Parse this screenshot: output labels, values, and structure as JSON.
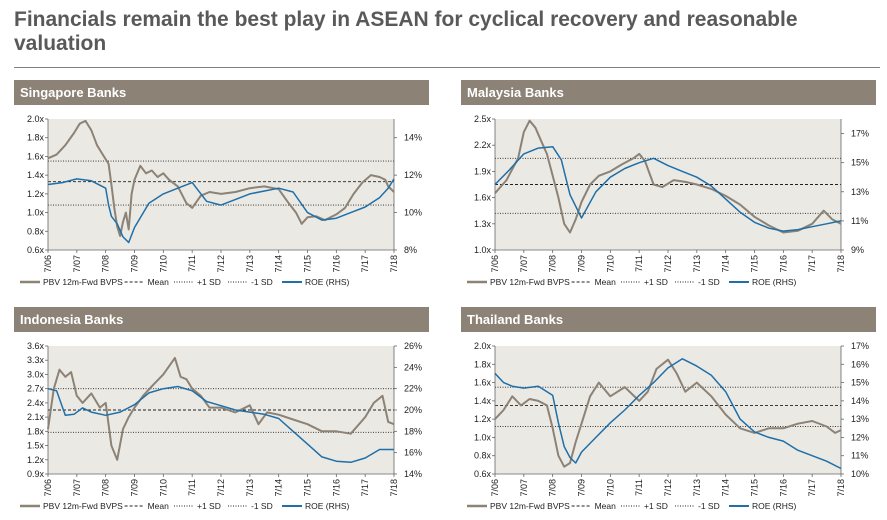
{
  "page": {
    "title": "Financials remain the best play in ASEAN for cyclical recovery and reasonable valuation"
  },
  "legend": {
    "pbv": "PBV 12m-Fwd BVPS",
    "mean": "Mean",
    "plus_sd": "+1 SD",
    "minus_sd": "-1 SD",
    "roe": "ROE (RHS)"
  },
  "colors": {
    "pbv": "#8c8276",
    "roe": "#1f6fa8",
    "header": "#8c8276",
    "plot_bg": "#ebe9e4"
  },
  "chart_data": [
    {
      "type": "line",
      "title": "Singapore Banks",
      "x_ticks": [
        "7/06",
        "7/07",
        "7/08",
        "7/09",
        "7/10",
        "7/11",
        "7/12",
        "7/13",
        "7/14",
        "7/15",
        "7/16",
        "7/17",
        "7/18"
      ],
      "y_left_ticks": [
        "0.6x",
        "0.8x",
        "1.0x",
        "1.2x",
        "1.4x",
        "1.6x",
        "1.8x",
        "2.0x"
      ],
      "y_left_lim": [
        0.6,
        2.0
      ],
      "y_right_ticks": [
        "8%",
        "10%",
        "12%",
        "14%"
      ],
      "y_right_lim": [
        8,
        15
      ],
      "mean": 1.33,
      "plus_sd": 1.55,
      "minus_sd": 1.08,
      "series": [
        {
          "name": "PBV 12m-Fwd BVPS",
          "axis": "left",
          "x": [
            0,
            0.3,
            0.6,
            0.9,
            1.1,
            1.3,
            1.5,
            1.7,
            1.9,
            2.1,
            2.2,
            2.3,
            2.4,
            2.5,
            2.6,
            2.7,
            2.8,
            2.9,
            3.0,
            3.2,
            3.4,
            3.6,
            3.8,
            4.0,
            4.2,
            4.5,
            4.8,
            5.0,
            5.3,
            5.6,
            6.0,
            6.5,
            7.0,
            7.5,
            8.0,
            8.3,
            8.6,
            8.8,
            9.0,
            9.3,
            9.6,
            10.0,
            10.3,
            10.6,
            10.9,
            11.2,
            11.5,
            11.7,
            11.8,
            12.0
          ],
          "y": [
            1.58,
            1.62,
            1.72,
            1.85,
            1.95,
            1.98,
            1.88,
            1.72,
            1.62,
            1.52,
            1.3,
            1.05,
            0.85,
            0.75,
            0.9,
            1.0,
            0.82,
            1.2,
            1.35,
            1.5,
            1.42,
            1.45,
            1.38,
            1.42,
            1.35,
            1.28,
            1.1,
            1.05,
            1.18,
            1.22,
            1.2,
            1.22,
            1.26,
            1.28,
            1.25,
            1.12,
            1.0,
            0.88,
            0.95,
            0.96,
            0.92,
            0.98,
            1.05,
            1.2,
            1.32,
            1.4,
            1.38,
            1.35,
            1.28,
            1.22
          ]
        },
        {
          "name": "ROE (RHS)",
          "axis": "right",
          "x": [
            0,
            0.5,
            1.0,
            1.5,
            2.0,
            2.1,
            2.2,
            2.4,
            2.6,
            2.8,
            3.0,
            3.5,
            4.0,
            4.5,
            5.0,
            5.5,
            6.0,
            7.0,
            8.0,
            8.5,
            9.0,
            9.5,
            10.0,
            10.5,
            11.0,
            11.5,
            11.8,
            12.0
          ],
          "y": [
            11.5,
            11.6,
            11.8,
            11.7,
            11.3,
            10.4,
            9.8,
            9.4,
            8.7,
            8.4,
            9.2,
            10.5,
            11.0,
            11.3,
            11.6,
            10.6,
            10.4,
            11.0,
            11.3,
            11.1,
            10.0,
            9.6,
            9.7,
            10.0,
            10.3,
            10.8,
            11.3,
            11.8
          ]
        }
      ]
    },
    {
      "type": "line",
      "title": "Malaysia Banks",
      "x_ticks": [
        "7/06",
        "7/07",
        "7/08",
        "7/09",
        "7/10",
        "7/11",
        "7/12",
        "7/13",
        "7/14",
        "7/15",
        "7/16",
        "7/17",
        "7/18"
      ],
      "y_left_ticks": [
        "1.0x",
        "1.3x",
        "1.6x",
        "1.9x",
        "2.2x",
        "2.5x"
      ],
      "y_left_lim": [
        1.0,
        2.5
      ],
      "y_right_ticks": [
        "9%",
        "11%",
        "13%",
        "15%",
        "17%"
      ],
      "y_right_lim": [
        9,
        18
      ],
      "mean": 1.75,
      "plus_sd": 2.05,
      "minus_sd": 1.42,
      "series": [
        {
          "name": "PBV 12m-Fwd BVPS",
          "axis": "left",
          "x": [
            0,
            0.4,
            0.8,
            1.0,
            1.2,
            1.4,
            1.6,
            1.8,
            2.0,
            2.2,
            2.4,
            2.6,
            2.8,
            3.0,
            3.3,
            3.6,
            4.0,
            4.4,
            4.8,
            5.0,
            5.2,
            5.5,
            5.8,
            6.2,
            6.6,
            7.0,
            7.5,
            8.0,
            8.5,
            9.0,
            9.5,
            10.0,
            10.5,
            11.0,
            11.4,
            11.7,
            12.0
          ],
          "y": [
            1.65,
            1.8,
            2.05,
            2.35,
            2.48,
            2.4,
            2.25,
            2.1,
            1.85,
            1.6,
            1.3,
            1.2,
            1.35,
            1.55,
            1.75,
            1.85,
            1.9,
            1.98,
            2.05,
            2.1,
            2.02,
            1.75,
            1.72,
            1.8,
            1.78,
            1.75,
            1.7,
            1.62,
            1.52,
            1.38,
            1.28,
            1.2,
            1.22,
            1.3,
            1.45,
            1.35,
            1.3
          ]
        },
        {
          "name": "ROE (RHS)",
          "axis": "right",
          "x": [
            0,
            0.5,
            1.0,
            1.5,
            2.0,
            2.3,
            2.6,
            3.0,
            3.5,
            4.0,
            4.5,
            5.0,
            5.5,
            6.0,
            6.5,
            7.0,
            7.5,
            8.0,
            8.5,
            9.0,
            9.5,
            10.0,
            10.5,
            11.0,
            11.5,
            12.0
          ],
          "y": [
            13.5,
            14.5,
            15.6,
            16.0,
            16.1,
            15.2,
            12.8,
            11.2,
            13.0,
            14.0,
            14.6,
            15.0,
            15.3,
            14.8,
            14.4,
            14.0,
            13.4,
            12.5,
            11.6,
            10.9,
            10.5,
            10.3,
            10.4,
            10.6,
            10.8,
            11.0
          ]
        }
      ]
    },
    {
      "type": "line",
      "title": "Indonesia Banks",
      "x_ticks": [
        "7/06",
        "7/07",
        "7/08",
        "7/09",
        "7/10",
        "7/11",
        "7/12",
        "7/13",
        "7/14",
        "7/15",
        "7/16",
        "7/17",
        "7/18"
      ],
      "y_left_ticks": [
        "0.9x",
        "1.2x",
        "1.5x",
        "1.8x",
        "2.1x",
        "2.4x",
        "2.7x",
        "3.0x",
        "3.3x",
        "3.6x"
      ],
      "y_left_lim": [
        0.9,
        3.6
      ],
      "y_right_ticks": [
        "14%",
        "16%",
        "18%",
        "20%",
        "22%",
        "24%",
        "26%"
      ],
      "y_right_lim": [
        14,
        26
      ],
      "mean": 2.25,
      "plus_sd": 2.7,
      "minus_sd": 1.78,
      "series": [
        {
          "name": "PBV 12m-Fwd BVPS",
          "axis": "left",
          "x": [
            0,
            0.2,
            0.4,
            0.6,
            0.8,
            1.0,
            1.2,
            1.5,
            1.8,
            2.0,
            2.2,
            2.4,
            2.6,
            2.8,
            3.0,
            3.3,
            3.6,
            4.0,
            4.4,
            4.6,
            4.8,
            5.0,
            5.3,
            5.6,
            6.0,
            6.5,
            7.0,
            7.3,
            7.6,
            8.0,
            8.5,
            9.0,
            9.5,
            10.0,
            10.5,
            11.0,
            11.3,
            11.6,
            11.8,
            12.0
          ],
          "y": [
            1.85,
            2.7,
            3.1,
            2.95,
            3.05,
            2.55,
            2.4,
            2.6,
            2.3,
            2.4,
            1.5,
            1.2,
            1.85,
            2.1,
            2.3,
            2.55,
            2.75,
            3.0,
            3.35,
            2.95,
            2.9,
            2.7,
            2.55,
            2.3,
            2.3,
            2.2,
            2.35,
            1.95,
            2.2,
            2.15,
            2.05,
            1.95,
            1.8,
            1.8,
            1.75,
            2.1,
            2.4,
            2.55,
            2.0,
            1.95
          ]
        },
        {
          "name": "ROE (RHS)",
          "axis": "right",
          "x": [
            0,
            0.3,
            0.6,
            0.9,
            1.2,
            1.5,
            2.0,
            2.5,
            3.0,
            3.5,
            4.0,
            4.5,
            5.0,
            5.5,
            6.0,
            6.5,
            7.0,
            7.5,
            8.0,
            8.5,
            9.0,
            9.5,
            10.0,
            10.5,
            11.0,
            11.5,
            12.0
          ],
          "y": [
            22.0,
            21.8,
            19.5,
            19.6,
            20.2,
            19.8,
            19.5,
            19.8,
            20.5,
            21.6,
            22.0,
            22.2,
            21.8,
            20.8,
            20.4,
            20.0,
            19.8,
            19.6,
            19.2,
            18.0,
            16.8,
            15.6,
            15.2,
            15.1,
            15.5,
            16.3,
            16.3
          ]
        }
      ]
    },
    {
      "type": "line",
      "title": "Thailand Banks",
      "x_ticks": [
        "7/06",
        "7/07",
        "7/08",
        "7/09",
        "7/10",
        "7/11",
        "7/12",
        "7/13",
        "7/14",
        "7/15",
        "7/16",
        "7/17",
        "7/18"
      ],
      "y_left_ticks": [
        "0.6x",
        "0.8x",
        "1.0x",
        "1.2x",
        "1.4x",
        "1.6x",
        "1.8x",
        "2.0x"
      ],
      "y_left_lim": [
        0.6,
        2.0
      ],
      "y_right_ticks": [
        "10%",
        "11%",
        "12%",
        "13%",
        "14%",
        "15%",
        "16%",
        "17%"
      ],
      "y_right_lim": [
        10,
        17
      ],
      "mean": 1.35,
      "plus_sd": 1.55,
      "minus_sd": 1.12,
      "series": [
        {
          "name": "PBV 12m-Fwd BVPS",
          "axis": "left",
          "x": [
            0,
            0.3,
            0.6,
            0.9,
            1.2,
            1.5,
            1.8,
            2.0,
            2.2,
            2.4,
            2.6,
            2.8,
            3.0,
            3.3,
            3.6,
            4.0,
            4.5,
            5.0,
            5.3,
            5.6,
            6.0,
            6.3,
            6.6,
            7.0,
            7.5,
            8.0,
            8.5,
            9.0,
            9.5,
            10.0,
            10.5,
            11.0,
            11.5,
            11.8,
            12.0
          ],
          "y": [
            1.2,
            1.3,
            1.45,
            1.35,
            1.42,
            1.4,
            1.35,
            1.1,
            0.8,
            0.68,
            0.72,
            0.95,
            1.15,
            1.45,
            1.6,
            1.45,
            1.55,
            1.4,
            1.5,
            1.75,
            1.85,
            1.7,
            1.5,
            1.6,
            1.45,
            1.25,
            1.1,
            1.05,
            1.1,
            1.1,
            1.15,
            1.18,
            1.12,
            1.05,
            1.08
          ]
        },
        {
          "name": "ROE (RHS)",
          "axis": "right",
          "x": [
            0,
            0.3,
            0.6,
            1.0,
            1.5,
            2.0,
            2.2,
            2.4,
            2.6,
            2.8,
            3.0,
            3.5,
            4.0,
            4.5,
            5.0,
            5.5,
            6.0,
            6.5,
            7.0,
            7.5,
            8.0,
            8.5,
            9.0,
            9.5,
            10.0,
            10.5,
            11.0,
            11.5,
            12.0
          ],
          "y": [
            15.5,
            15.0,
            14.8,
            14.7,
            14.8,
            14.3,
            12.8,
            11.5,
            10.9,
            10.6,
            11.2,
            12.0,
            12.8,
            13.5,
            14.3,
            15.0,
            15.8,
            16.3,
            15.9,
            15.4,
            14.5,
            13.0,
            12.3,
            12.0,
            11.8,
            11.3,
            11.0,
            10.7,
            10.3
          ]
        }
      ]
    }
  ]
}
